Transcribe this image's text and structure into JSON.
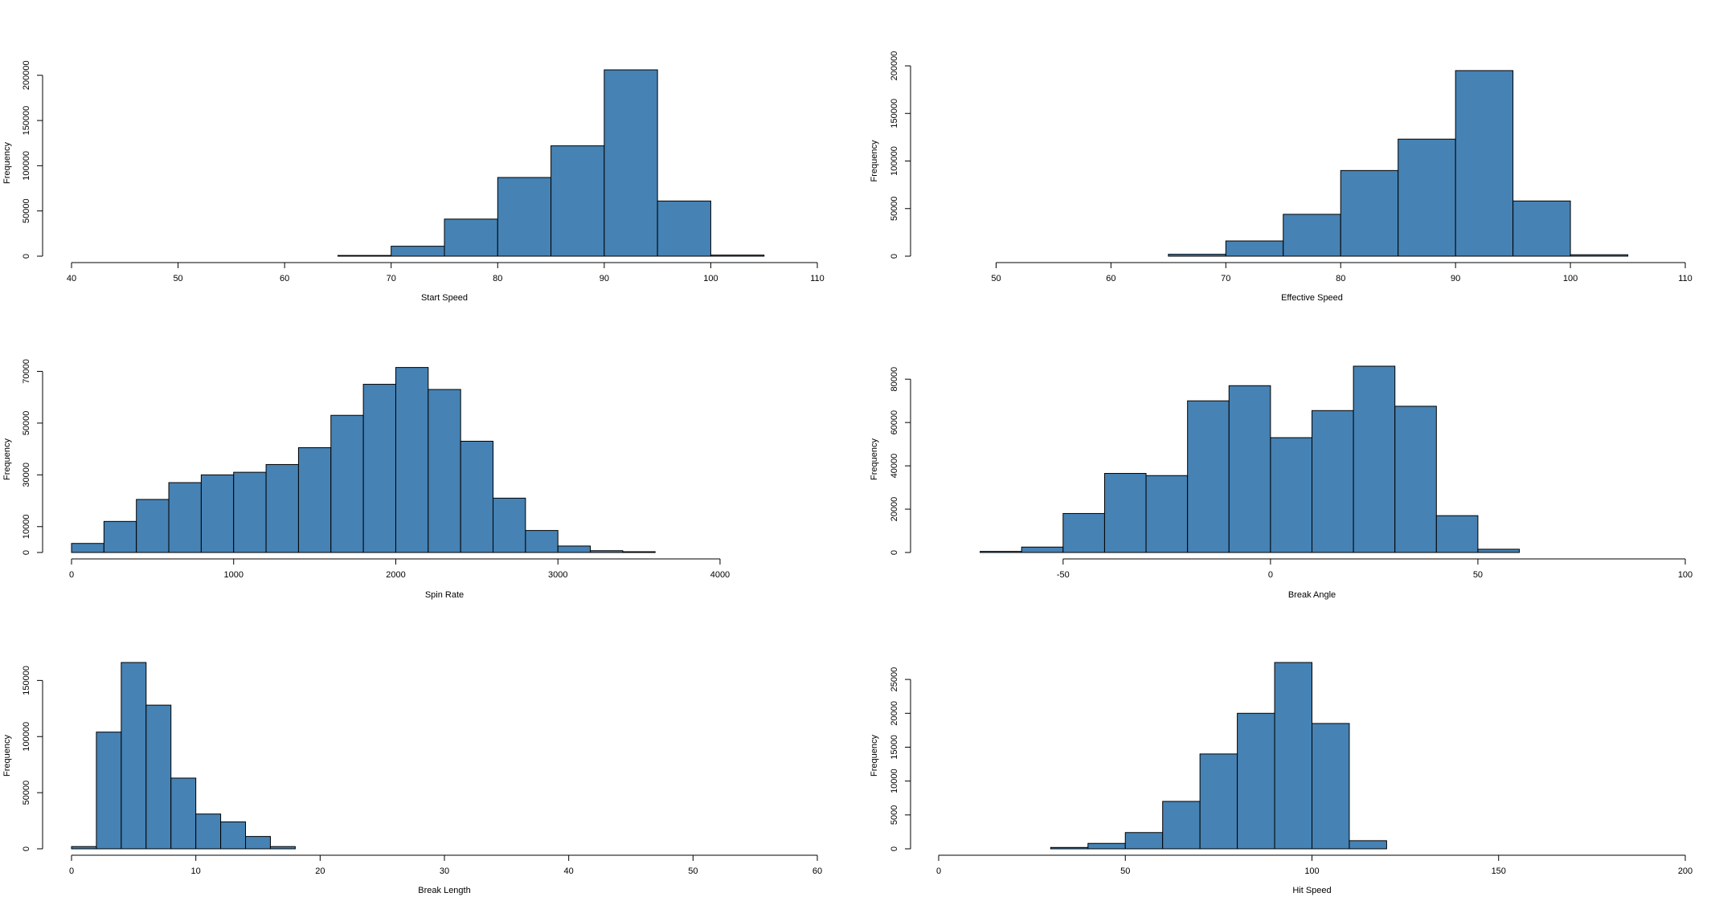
{
  "colors": {
    "bar_fill": "#4682b4",
    "bar_stroke": "#000000",
    "axis": "#000000",
    "background": "#ffffff"
  },
  "chart_data": [
    {
      "type": "bar",
      "title": "",
      "xlabel": "Start Speed",
      "ylabel": "Frequency",
      "bin_width": 5,
      "bins": [
        [
          40,
          0
        ],
        [
          45,
          0
        ],
        [
          50,
          0
        ],
        [
          55,
          0
        ],
        [
          60,
          0
        ],
        [
          65,
          800
        ],
        [
          70,
          11000
        ],
        [
          75,
          41000
        ],
        [
          80,
          87000
        ],
        [
          85,
          122000
        ],
        [
          90,
          206000
        ],
        [
          95,
          61000
        ],
        [
          100,
          1200
        ],
        [
          105,
          0
        ]
      ],
      "xlim": [
        40,
        110
      ],
      "ylim": [
        0,
        206000
      ],
      "xticks": [
        40,
        50,
        60,
        70,
        80,
        90,
        100,
        110
      ],
      "yticks": [
        0,
        50000,
        100000,
        150000,
        200000
      ],
      "xtick_labels": [
        "40",
        "50",
        "60",
        "70",
        "80",
        "90",
        "100",
        "110"
      ],
      "ytick_labels": [
        "0",
        "50000",
        "100000",
        "150000",
        "200000"
      ],
      "grid": false
    },
    {
      "type": "bar",
      "title": "",
      "xlabel": "Effective Speed",
      "ylabel": "Frequency",
      "bin_width": 5,
      "bins": [
        [
          45,
          0
        ],
        [
          50,
          0
        ],
        [
          55,
          0
        ],
        [
          60,
          0
        ],
        [
          65,
          2000
        ],
        [
          70,
          16000
        ],
        [
          75,
          44000
        ],
        [
          80,
          90000
        ],
        [
          85,
          123000
        ],
        [
          90,
          195000
        ],
        [
          95,
          58000
        ],
        [
          100,
          1500
        ],
        [
          105,
          0
        ]
      ],
      "xlim": [
        45,
        110
      ],
      "ylim": [
        0,
        200000
      ],
      "xticks": [
        50,
        60,
        70,
        80,
        90,
        100,
        110
      ],
      "yticks": [
        0,
        50000,
        100000,
        150000,
        200000
      ],
      "xtick_labels": [
        "50",
        "60",
        "70",
        "80",
        "90",
        "100",
        "110"
      ],
      "ytick_labels": [
        "0",
        "50000",
        "100000",
        "150000",
        "200000"
      ],
      "grid": false
    },
    {
      "type": "bar",
      "title": "",
      "xlabel": "Spin Rate",
      "ylabel": "Frequency",
      "bin_width": 200,
      "bins": [
        [
          0,
          3500
        ],
        [
          200,
          12000
        ],
        [
          400,
          20500
        ],
        [
          600,
          27000
        ],
        [
          800,
          30000
        ],
        [
          1000,
          31000
        ],
        [
          1200,
          34000
        ],
        [
          1400,
          40500
        ],
        [
          1600,
          53000
        ],
        [
          1800,
          65000
        ],
        [
          2000,
          71500
        ],
        [
          2200,
          63000
        ],
        [
          2400,
          43000
        ],
        [
          2600,
          21000
        ],
        [
          2800,
          8500
        ],
        [
          3000,
          2500
        ],
        [
          3200,
          700
        ],
        [
          3400,
          300
        ],
        [
          3600,
          0
        ],
        [
          3800,
          0
        ],
        [
          4000,
          0
        ],
        [
          4200,
          0
        ],
        [
          4400,
          0
        ]
      ],
      "xlim": [
        0,
        4600
      ],
      "ylim": [
        0,
        72000
      ],
      "xticks": [
        0,
        1000,
        2000,
        3000,
        4000
      ],
      "yticks": [
        0,
        10000,
        30000,
        50000,
        70000
      ],
      "xtick_labels": [
        "0",
        "1000",
        "2000",
        "3000",
        "4000"
      ],
      "ytick_labels": [
        "0",
        "10000",
        "30000",
        "50000",
        "70000"
      ],
      "grid": false
    },
    {
      "type": "bar",
      "title": "",
      "xlabel": "Break Angle",
      "ylabel": "Frequency",
      "bin_width": 10,
      "bins": [
        [
          -80,
          0
        ],
        [
          -70,
          500
        ],
        [
          -60,
          2500
        ],
        [
          -50,
          18000
        ],
        [
          -40,
          36500
        ],
        [
          -30,
          35500
        ],
        [
          -20,
          70000
        ],
        [
          -10,
          77000
        ],
        [
          0,
          53000
        ],
        [
          10,
          65500
        ],
        [
          20,
          86000
        ],
        [
          30,
          67500
        ],
        [
          40,
          17000
        ],
        [
          50,
          1500
        ],
        [
          60,
          0
        ],
        [
          70,
          0
        ],
        [
          80,
          0
        ],
        [
          90,
          0
        ]
      ],
      "xlim": [
        -80,
        100
      ],
      "ylim": [
        0,
        86000
      ],
      "xticks": [
        -50,
        0,
        50,
        100
      ],
      "yticks": [
        0,
        20000,
        40000,
        60000,
        80000
      ],
      "xtick_labels": [
        "-50",
        "0",
        "50",
        "100"
      ],
      "ytick_labels": [
        "0",
        "20000",
        "40000",
        "60000",
        "80000"
      ],
      "grid": false
    },
    {
      "type": "bar",
      "title": "",
      "xlabel": "Break Length",
      "ylabel": "Frequency",
      "bin_width": 2,
      "bins": [
        [
          0,
          2000
        ],
        [
          2,
          104000
        ],
        [
          4,
          166000
        ],
        [
          6,
          128000
        ],
        [
          8,
          63000
        ],
        [
          10,
          31000
        ],
        [
          12,
          24000
        ],
        [
          14,
          11000
        ],
        [
          16,
          2000
        ],
        [
          18,
          0
        ],
        [
          20,
          0
        ],
        [
          22,
          0
        ],
        [
          24,
          0
        ],
        [
          26,
          0
        ],
        [
          28,
          0
        ],
        [
          30,
          0
        ],
        [
          32,
          0
        ],
        [
          34,
          0
        ],
        [
          36,
          0
        ],
        [
          38,
          0
        ],
        [
          40,
          0
        ],
        [
          42,
          0
        ],
        [
          44,
          0
        ],
        [
          46,
          0
        ],
        [
          48,
          0
        ],
        [
          50,
          0
        ],
        [
          52,
          0
        ],
        [
          54,
          0
        ],
        [
          56,
          0
        ],
        [
          58,
          0
        ]
      ],
      "xlim": [
        0,
        60
      ],
      "ylim": [
        0,
        166000
      ],
      "xticks": [
        0,
        10,
        20,
        30,
        40,
        50,
        60
      ],
      "yticks": [
        0,
        50000,
        100000,
        150000
      ],
      "xtick_labels": [
        "0",
        "10",
        "20",
        "30",
        "40",
        "50",
        "60"
      ],
      "ytick_labels": [
        "0",
        "50000",
        "100000",
        "150000"
      ],
      "grid": false
    },
    {
      "type": "bar",
      "title": "",
      "xlabel": "Hit Speed",
      "ylabel": "Frequency",
      "bin_width": 10,
      "bins": [
        [
          0,
          0
        ],
        [
          10,
          0
        ],
        [
          20,
          0
        ],
        [
          30,
          200
        ],
        [
          40,
          800
        ],
        [
          50,
          2400
        ],
        [
          60,
          7000
        ],
        [
          70,
          14000
        ],
        [
          80,
          20000
        ],
        [
          90,
          27500
        ],
        [
          100,
          18500
        ],
        [
          110,
          1200
        ],
        [
          120,
          0
        ],
        [
          130,
          0
        ],
        [
          140,
          0
        ],
        [
          150,
          0
        ],
        [
          160,
          0
        ],
        [
          170,
          0
        ],
        [
          180,
          0
        ],
        [
          190,
          0
        ]
      ],
      "xlim": [
        0,
        200
      ],
      "ylim": [
        0,
        27500
      ],
      "xticks": [
        0,
        50,
        100,
        150,
        200
      ],
      "yticks": [
        0,
        5000,
        10000,
        15000,
        20000,
        25000
      ],
      "xtick_labels": [
        "0",
        "50",
        "100",
        "150",
        "200"
      ],
      "ytick_labels": [
        "0",
        "5000",
        "10000",
        "15000",
        "20000",
        "25000"
      ],
      "grid": false
    }
  ]
}
